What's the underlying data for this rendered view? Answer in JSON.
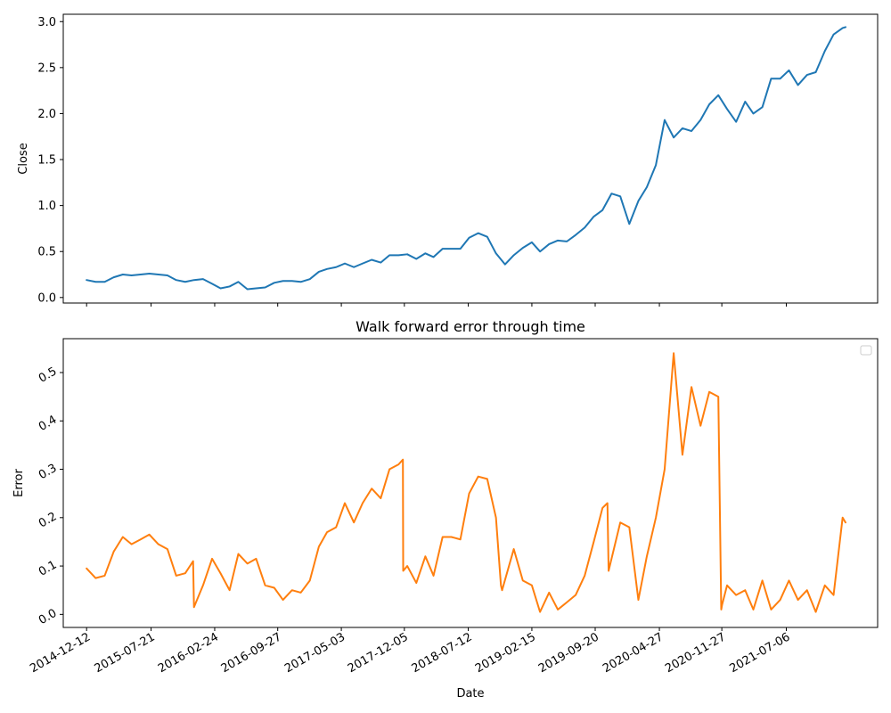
{
  "chart_data": [
    {
      "type": "line",
      "title": "",
      "xlabel": "",
      "ylabel": "Close",
      "x_start": "2014-12-12",
      "x_end": "2022-01-25",
      "xlim": [
        "2014-09-23",
        "2022-05-15"
      ],
      "ylim": [
        -0.06,
        3.08
      ],
      "yticks": [
        0.0,
        0.5,
        1.0,
        1.5,
        2.0,
        2.5,
        3.0
      ],
      "show_x_tick_labels": false,
      "grid": false,
      "series": [
        {
          "color": "#1f77b4",
          "x": [
            "2014-12-12",
            "2015-01-12",
            "2015-02-12",
            "2015-03-15",
            "2015-04-15",
            "2015-05-15",
            "2015-06-15",
            "2015-07-15",
            "2015-08-15",
            "2015-09-15",
            "2015-10-15",
            "2015-11-15",
            "2015-12-15",
            "2016-01-15",
            "2016-02-15",
            "2016-03-15",
            "2016-04-15",
            "2016-05-15",
            "2016-06-15",
            "2016-07-15",
            "2016-08-15",
            "2016-09-15",
            "2016-10-15",
            "2016-11-15",
            "2016-12-15",
            "2017-01-15",
            "2017-02-15",
            "2017-03-15",
            "2017-04-15",
            "2017-05-15",
            "2017-06-15",
            "2017-07-15",
            "2017-08-15",
            "2017-09-15",
            "2017-10-15",
            "2017-11-15",
            "2017-12-15",
            "2018-01-15",
            "2018-02-15",
            "2018-03-15",
            "2018-04-15",
            "2018-05-15",
            "2018-06-15",
            "2018-07-15",
            "2018-08-15",
            "2018-09-15",
            "2018-10-15",
            "2018-11-15",
            "2018-12-15",
            "2019-01-15",
            "2019-02-15",
            "2019-03-15",
            "2019-04-15",
            "2019-05-15",
            "2019-06-15",
            "2019-07-15",
            "2019-08-15",
            "2019-09-15",
            "2019-10-15",
            "2019-11-15",
            "2019-12-15",
            "2020-01-15",
            "2020-02-15",
            "2020-03-15",
            "2020-04-15",
            "2020-05-15",
            "2020-06-15",
            "2020-07-15",
            "2020-08-15",
            "2020-09-15",
            "2020-10-15",
            "2020-11-15",
            "2020-12-15",
            "2021-01-15",
            "2021-02-15",
            "2021-03-15",
            "2021-04-15",
            "2021-05-15",
            "2021-06-15",
            "2021-07-15",
            "2021-08-15",
            "2021-09-15",
            "2021-10-15",
            "2021-11-15",
            "2021-12-15",
            "2022-01-15",
            "2022-01-25"
          ],
          "y": [
            0.19,
            0.17,
            0.17,
            0.22,
            0.25,
            0.24,
            0.25,
            0.26,
            0.25,
            0.24,
            0.19,
            0.17,
            0.19,
            0.2,
            0.15,
            0.1,
            0.12,
            0.17,
            0.09,
            0.1,
            0.11,
            0.16,
            0.18,
            0.18,
            0.17,
            0.2,
            0.28,
            0.31,
            0.33,
            0.37,
            0.33,
            0.37,
            0.41,
            0.38,
            0.46,
            0.46,
            0.47,
            0.42,
            0.48,
            0.44,
            0.53,
            0.53,
            0.53,
            0.65,
            0.7,
            0.66,
            0.48,
            0.36,
            0.46,
            0.54,
            0.6,
            0.5,
            0.58,
            0.62,
            0.61,
            0.68,
            0.76,
            0.88,
            0.95,
            1.13,
            1.1,
            0.8,
            1.05,
            1.2,
            1.44,
            1.93,
            1.74,
            1.84,
            1.81,
            1.93,
            2.1,
            2.2,
            2.05,
            1.91,
            2.13,
            2.0,
            2.07,
            2.38,
            2.38,
            2.47,
            2.31,
            2.42,
            2.45,
            2.68,
            2.86,
            2.93,
            2.94
          ]
        }
      ]
    },
    {
      "type": "line",
      "title": "Walk forward error through time",
      "xlabel": "Date",
      "ylabel": "Error",
      "x_start": "2014-12-12",
      "x_end": "2022-01-25",
      "xlim": [
        "2014-09-23",
        "2022-05-15"
      ],
      "ylim": [
        -0.027,
        0.57
      ],
      "yticks": [
        0.0,
        0.1,
        0.2,
        0.3,
        0.4,
        0.5
      ],
      "xticks": [
        "2014-12-12",
        "2015-07-21",
        "2016-02-24",
        "2016-09-27",
        "2017-05-03",
        "2017-12-05",
        "2018-07-12",
        "2019-02-15",
        "2019-09-20",
        "2020-04-27",
        "2020-11-27",
        "2021-07-06"
      ],
      "legend": {
        "placement": "upper right",
        "entries": []
      },
      "grid": false,
      "series": [
        {
          "color": "#ff7f0e",
          "x": [
            "2014-12-12",
            "2015-01-12",
            "2015-02-12",
            "2015-03-15",
            "2015-04-15",
            "2015-05-15",
            "2015-06-15",
            "2015-07-15",
            "2015-08-15",
            "2015-09-15",
            "2015-10-15",
            "2015-11-15",
            "2015-12-12",
            "2015-12-15",
            "2016-01-15",
            "2016-02-15",
            "2016-03-15",
            "2016-04-15",
            "2016-05-15",
            "2016-06-15",
            "2016-07-15",
            "2016-08-15",
            "2016-09-15",
            "2016-10-15",
            "2016-11-15",
            "2016-12-15",
            "2017-01-15",
            "2017-02-15",
            "2017-03-15",
            "2017-04-15",
            "2017-05-15",
            "2017-06-15",
            "2017-07-15",
            "2017-08-15",
            "2017-09-15",
            "2017-10-15",
            "2017-11-15",
            "2017-11-30",
            "2017-12-01",
            "2017-12-15",
            "2018-01-15",
            "2018-02-15",
            "2018-03-15",
            "2018-04-15",
            "2018-05-15",
            "2018-06-15",
            "2018-07-15",
            "2018-08-15",
            "2018-09-15",
            "2018-10-15",
            "2018-11-01",
            "2018-11-05",
            "2018-12-15",
            "2019-01-15",
            "2019-02-15",
            "2019-03-15",
            "2019-04-15",
            "2019-05-15",
            "2019-06-15",
            "2019-07-15",
            "2019-08-15",
            "2019-09-15",
            "2019-10-15",
            "2019-11-01",
            "2019-11-05",
            "2019-12-15",
            "2020-01-15",
            "2020-02-15",
            "2020-03-15",
            "2020-04-15",
            "2020-05-15",
            "2020-06-15",
            "2020-07-15",
            "2020-08-15",
            "2020-09-15",
            "2020-10-15",
            "2020-11-15",
            "2020-11-25",
            "2020-11-28",
            "2020-12-15",
            "2021-01-15",
            "2021-02-15",
            "2021-03-15",
            "2021-04-15",
            "2021-05-15",
            "2021-06-15",
            "2021-07-15",
            "2021-08-15",
            "2021-09-15",
            "2021-10-15",
            "2021-11-15",
            "2021-12-15",
            "2022-01-15",
            "2022-01-25"
          ],
          "y": [
            0.095,
            0.075,
            0.08,
            0.13,
            0.16,
            0.145,
            0.155,
            0.165,
            0.145,
            0.135,
            0.08,
            0.085,
            0.11,
            0.015,
            0.06,
            0.115,
            0.085,
            0.05,
            0.125,
            0.105,
            0.115,
            0.06,
            0.055,
            0.03,
            0.05,
            0.045,
            0.07,
            0.14,
            0.17,
            0.18,
            0.23,
            0.19,
            0.23,
            0.26,
            0.24,
            0.3,
            0.31,
            0.32,
            0.09,
            0.1,
            0.065,
            0.12,
            0.08,
            0.16,
            0.16,
            0.155,
            0.25,
            0.285,
            0.28,
            0.2,
            0.06,
            0.05,
            0.135,
            0.07,
            0.06,
            0.005,
            0.045,
            0.01,
            0.025,
            0.04,
            0.08,
            0.15,
            0.22,
            0.23,
            0.09,
            0.19,
            0.18,
            0.03,
            0.12,
            0.2,
            0.3,
            0.54,
            0.33,
            0.47,
            0.39,
            0.46,
            0.45,
            0.01,
            0.02,
            0.06,
            0.04,
            0.05,
            0.01,
            0.07,
            0.01,
            0.03,
            0.07,
            0.03,
            0.05,
            0.005,
            0.06,
            0.04,
            0.2,
            0.19
          ]
        }
      ]
    }
  ]
}
